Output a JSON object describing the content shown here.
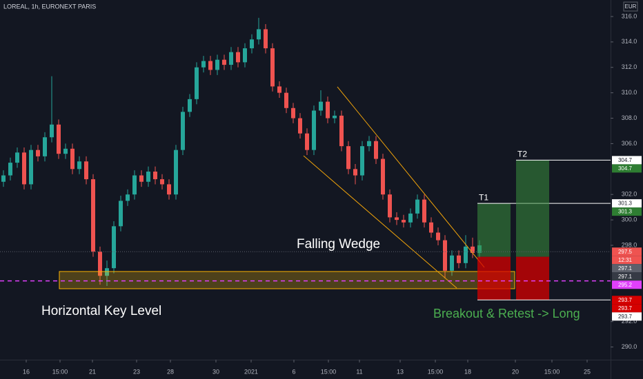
{
  "chart_data": {
    "type": "candlestick",
    "title": "LOREAL, 1h, EURONEXT PARIS",
    "currency": "EUR",
    "up_color": "#26a69a",
    "down_color": "#ef5350",
    "open": [
      303.0,
      303.5,
      304.5,
      305.3,
      302.8,
      305.5,
      305.0,
      306.5,
      307.5,
      305.2,
      305.6,
      304.0,
      304.6,
      303.2,
      297.5,
      295.6,
      296.2,
      299.5,
      301.5,
      302.0,
      303.5,
      303.0,
      303.8,
      303.2,
      302.8,
      302.0,
      305.5,
      308.5,
      309.5,
      312.0,
      312.5,
      311.8,
      312.6,
      312.2,
      313.2,
      312.4,
      313.5,
      314.2,
      315.0,
      313.5,
      310.5,
      310.0,
      308.8,
      308.0,
      306.8,
      305.5,
      308.6,
      309.3,
      308.0,
      308.2,
      305.8,
      304.0,
      303.5,
      305.8,
      306.2,
      304.8,
      302.0,
      300.2,
      300.0,
      299.8,
      300.5,
      301.6,
      299.8,
      299.0,
      298.4,
      296.0,
      297.2,
      296.6,
      297.9,
      297.4
    ],
    "high": [
      303.9,
      304.9,
      305.7,
      305.7,
      305.9,
      305.9,
      306.9,
      311.3,
      307.9,
      306.0,
      306.0,
      305.0,
      305.0,
      303.6,
      297.9,
      296.8,
      299.9,
      301.9,
      302.4,
      303.9,
      303.9,
      304.2,
      304.2,
      303.6,
      303.2,
      305.9,
      308.9,
      309.9,
      312.4,
      312.9,
      312.9,
      313.0,
      313.0,
      313.6,
      313.6,
      313.9,
      314.6,
      315.9,
      315.4,
      313.9,
      310.9,
      310.4,
      309.2,
      308.4,
      307.2,
      309.0,
      310.2,
      309.7,
      308.6,
      308.6,
      306.2,
      304.4,
      306.2,
      306.6,
      306.6,
      305.2,
      302.4,
      300.6,
      300.4,
      300.9,
      302.0,
      302.0,
      300.2,
      299.4,
      298.8,
      297.6,
      297.6,
      298.8,
      298.6,
      298.4
    ],
    "low": [
      302.6,
      303.1,
      304.1,
      302.4,
      302.4,
      304.6,
      304.6,
      306.1,
      304.8,
      304.8,
      303.6,
      303.6,
      302.8,
      297.1,
      294.9,
      294.8,
      295.8,
      299.1,
      301.1,
      301.6,
      302.6,
      302.6,
      302.8,
      302.4,
      301.6,
      301.6,
      305.1,
      308.1,
      309.1,
      311.6,
      311.4,
      311.4,
      311.8,
      311.8,
      312.0,
      312.0,
      313.1,
      313.8,
      313.1,
      310.1,
      309.6,
      308.4,
      307.6,
      306.4,
      305.1,
      305.1,
      308.2,
      307.6,
      307.6,
      305.4,
      303.6,
      302.8,
      303.1,
      305.4,
      304.4,
      301.6,
      299.8,
      299.6,
      299.4,
      299.4,
      300.1,
      299.4,
      298.6,
      298.0,
      295.4,
      295.6,
      296.2,
      296.2,
      297.0,
      297.0
    ],
    "close": [
      303.5,
      304.5,
      305.3,
      302.8,
      305.5,
      305.0,
      306.5,
      307.5,
      305.2,
      305.6,
      304.0,
      304.6,
      303.2,
      297.5,
      295.6,
      296.2,
      299.5,
      301.5,
      302.0,
      303.5,
      303.0,
      303.8,
      303.2,
      302.8,
      302.0,
      305.5,
      308.5,
      309.5,
      312.0,
      312.5,
      311.8,
      312.6,
      312.2,
      313.2,
      312.4,
      313.5,
      314.2,
      315.0,
      313.5,
      310.5,
      310.0,
      308.8,
      308.0,
      306.8,
      305.5,
      308.6,
      309.3,
      308.0,
      308.2,
      305.8,
      304.0,
      303.5,
      305.8,
      306.2,
      304.8,
      302.0,
      300.2,
      300.0,
      299.8,
      300.5,
      301.6,
      299.8,
      299.0,
      298.4,
      296.0,
      297.2,
      296.6,
      297.9,
      297.4,
      298.0
    ],
    "xlim": [
      -0.5,
      88
    ],
    "xticks": [
      {
        "value": 3.3,
        "label": "16"
      },
      {
        "value": 8.2,
        "label": "15:00"
      },
      {
        "value": 12.9,
        "label": "21"
      },
      {
        "value": 19.3,
        "label": "23"
      },
      {
        "value": 24.2,
        "label": "28"
      },
      {
        "value": 30.8,
        "label": "30"
      },
      {
        "value": 35.9,
        "label": "2021"
      },
      {
        "value": 42.1,
        "label": "6"
      },
      {
        "value": 47.1,
        "label": "15:00"
      },
      {
        "value": 51.6,
        "label": "11"
      },
      {
        "value": 57.5,
        "label": "13"
      },
      {
        "value": 62.6,
        "label": "15:00"
      },
      {
        "value": 67.3,
        "label": "18"
      },
      {
        "value": 74.2,
        "label": "20"
      },
      {
        "value": 79.5,
        "label": "15:00"
      },
      {
        "value": 84.6,
        "label": "25"
      }
    ],
    "ylim": [
      289.0,
      317.3
    ],
    "yticks": [
      {
        "value": 316,
        "label": "316.0"
      },
      {
        "value": 314,
        "label": "314.0"
      },
      {
        "value": 312,
        "label": "312.0"
      },
      {
        "value": 310,
        "label": "310.0"
      },
      {
        "value": 308,
        "label": "308.0"
      },
      {
        "value": 306,
        "label": "306.0"
      },
      {
        "value": 302,
        "label": "302.0"
      },
      {
        "value": 300,
        "label": "300.0"
      },
      {
        "value": 298,
        "label": "298.0"
      },
      {
        "value": 292,
        "label": "292.0"
      },
      {
        "value": 290,
        "label": "290.0"
      }
    ],
    "price_badges": [
      {
        "value": 304.7,
        "color": "#ffffff"
      },
      {
        "value": 304.7,
        "color": "#2e7d32"
      },
      {
        "value": 301.3,
        "color": "#ffffff"
      },
      {
        "value": 301.3,
        "color": "#2e7d32"
      },
      {
        "value": 297.5,
        "color": "#ef5350"
      },
      {
        "label": "12:31",
        "color": "#ef5350"
      },
      {
        "value": 297.1,
        "color": "#5d606b"
      },
      {
        "value": 297.1,
        "color": "#363a45"
      },
      {
        "value": 295.2,
        "color": "#e040fb"
      },
      {
        "value": 293.7,
        "color": "#d50000"
      },
      {
        "value": 293.7,
        "color": "#d50000"
      },
      {
        "value": 293.7,
        "color": "#ffffff"
      }
    ],
    "trade": {
      "entry": 297.1,
      "stop": 293.7,
      "targets": [
        {
          "name": "T1",
          "value": 301.3
        },
        {
          "name": "T2",
          "value": 304.7
        }
      ]
    },
    "annotations": {
      "wedge": "Falling Wedge",
      "key_level": "Horizontal Key Level",
      "setup": "Breakout & Retest -> Long"
    }
  }
}
